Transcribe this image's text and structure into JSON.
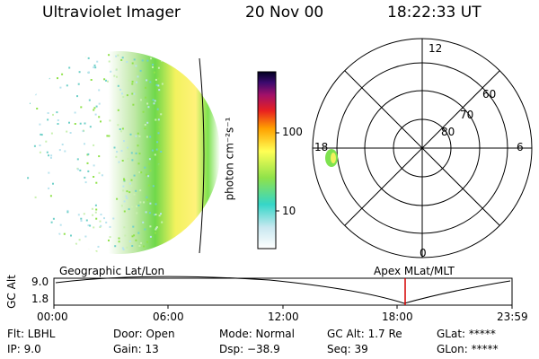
{
  "header": {
    "instrument": "Ultraviolet Imager",
    "date": "20 Nov 00",
    "time": "18:22:33 UT"
  },
  "colorbar": {
    "unit_label": "photon cm⁻²s⁻¹",
    "ticks": [
      "100",
      "10"
    ]
  },
  "polar_plot": {
    "mlt_labels": [
      "12",
      "18",
      "6",
      "0"
    ],
    "lat_labels": [
      "60",
      "70",
      "80"
    ]
  },
  "timeline": {
    "axis_label": "GC Alt",
    "alt_ticks": [
      "9.0",
      "1.8"
    ],
    "left_caption": "Geographic Lat/Lon",
    "right_caption": "Apex MLat/MLT",
    "time_ticks": [
      "00:00",
      "06:00",
      "12:00",
      "18:00",
      "23:59"
    ],
    "marker_color": "#d40000"
  },
  "footer": {
    "filter": "Flt: LBHL",
    "ip": "IP: 9.0",
    "door": "Door: Open",
    "gain": "Gain: 13",
    "mode": "Mode: Normal",
    "dsp": "Dsp: −38.9",
    "gc_alt": "GC Alt: 1.7 Re",
    "seq": "Seq: 39",
    "glat": "GLat: *****",
    "glon": "GLon: *****"
  }
}
